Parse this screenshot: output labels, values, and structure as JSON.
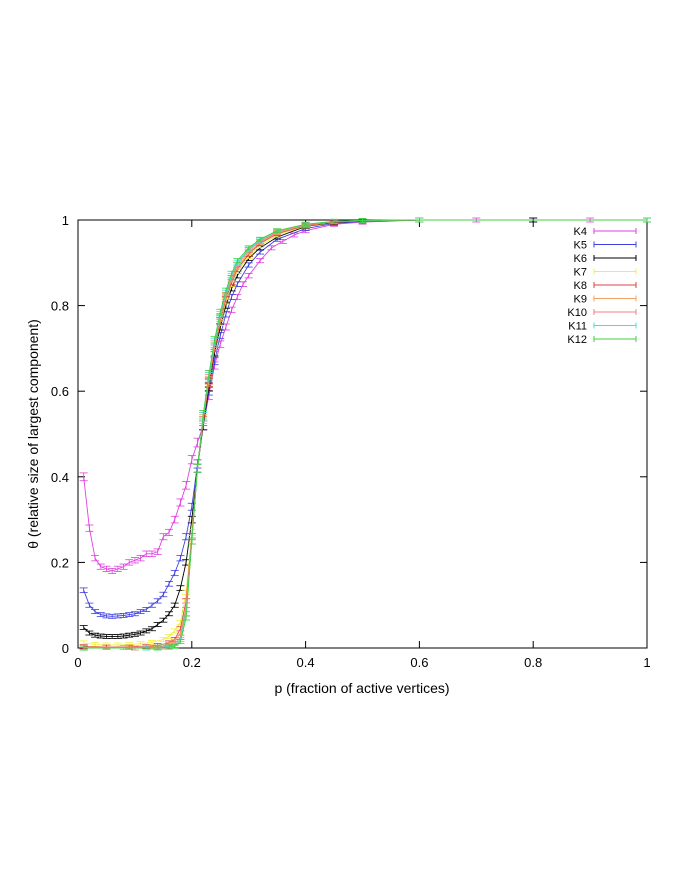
{
  "chart_data": {
    "type": "line",
    "title": "",
    "xlabel": "p (fraction of active vertices)",
    "ylabel": "θ (relative size of largest component)",
    "xlim": [
      0,
      1
    ],
    "ylim": [
      0,
      1
    ],
    "xticks": [
      "0",
      "0.2",
      "0.4",
      "0.6",
      "0.8",
      "1"
    ],
    "yticks": [
      "0",
      "0.2",
      "0.4",
      "0.6",
      "0.8",
      "1"
    ],
    "grid": false,
    "legend_position": "top-right",
    "error_bars": true,
    "series": [
      {
        "name": "K4",
        "color": "#e040e0",
        "points": [
          [
            0.01,
            0.4
          ],
          [
            0.02,
            0.28
          ],
          [
            0.03,
            0.21
          ],
          [
            0.04,
            0.19
          ],
          [
            0.05,
            0.185
          ],
          [
            0.06,
            0.18
          ],
          [
            0.07,
            0.185
          ],
          [
            0.08,
            0.19
          ],
          [
            0.09,
            0.2
          ],
          [
            0.1,
            0.205
          ],
          [
            0.11,
            0.21
          ],
          [
            0.12,
            0.22
          ],
          [
            0.13,
            0.22
          ],
          [
            0.14,
            0.225
          ],
          [
            0.15,
            0.26
          ],
          [
            0.16,
            0.27
          ],
          [
            0.17,
            0.3
          ],
          [
            0.18,
            0.34
          ],
          [
            0.19,
            0.38
          ],
          [
            0.2,
            0.44
          ],
          [
            0.21,
            0.48
          ],
          [
            0.22,
            0.52
          ],
          [
            0.23,
            0.59
          ],
          [
            0.24,
            0.66
          ],
          [
            0.25,
            0.71
          ],
          [
            0.26,
            0.75
          ],
          [
            0.27,
            0.79
          ],
          [
            0.28,
            0.82
          ],
          [
            0.29,
            0.85
          ],
          [
            0.3,
            0.87
          ],
          [
            0.32,
            0.905
          ],
          [
            0.34,
            0.935
          ],
          [
            0.36,
            0.95
          ],
          [
            0.38,
            0.965
          ],
          [
            0.4,
            0.975
          ],
          [
            0.45,
            0.99
          ],
          [
            0.5,
            0.995
          ],
          [
            0.6,
            1.0
          ],
          [
            0.7,
            1.0
          ],
          [
            0.8,
            1.0
          ],
          [
            0.9,
            1.0
          ],
          [
            1.0,
            1.0
          ]
        ]
      },
      {
        "name": "K5",
        "color": "#4040e0",
        "points": [
          [
            0.01,
            0.135
          ],
          [
            0.02,
            0.1
          ],
          [
            0.03,
            0.085
          ],
          [
            0.04,
            0.078
          ],
          [
            0.05,
            0.075
          ],
          [
            0.06,
            0.074
          ],
          [
            0.07,
            0.075
          ],
          [
            0.08,
            0.076
          ],
          [
            0.09,
            0.078
          ],
          [
            0.1,
            0.08
          ],
          [
            0.11,
            0.085
          ],
          [
            0.12,
            0.09
          ],
          [
            0.13,
            0.1
          ],
          [
            0.14,
            0.11
          ],
          [
            0.15,
            0.125
          ],
          [
            0.16,
            0.15
          ],
          [
            0.17,
            0.175
          ],
          [
            0.18,
            0.21
          ],
          [
            0.19,
            0.26
          ],
          [
            0.2,
            0.33
          ],
          [
            0.21,
            0.43
          ],
          [
            0.22,
            0.52
          ],
          [
            0.23,
            0.6
          ],
          [
            0.24,
            0.67
          ],
          [
            0.25,
            0.73
          ],
          [
            0.26,
            0.78
          ],
          [
            0.27,
            0.82
          ],
          [
            0.28,
            0.85
          ],
          [
            0.3,
            0.895
          ],
          [
            0.32,
            0.925
          ],
          [
            0.35,
            0.955
          ],
          [
            0.4,
            0.98
          ],
          [
            0.45,
            0.992
          ],
          [
            0.5,
            0.997
          ],
          [
            0.6,
            1.0
          ],
          [
            0.8,
            1.0
          ],
          [
            1.0,
            1.0
          ]
        ]
      },
      {
        "name": "K6",
        "color": "#000000",
        "points": [
          [
            0.01,
            0.048
          ],
          [
            0.02,
            0.035
          ],
          [
            0.03,
            0.03
          ],
          [
            0.04,
            0.028
          ],
          [
            0.05,
            0.027
          ],
          [
            0.06,
            0.027
          ],
          [
            0.07,
            0.027
          ],
          [
            0.08,
            0.028
          ],
          [
            0.09,
            0.03
          ],
          [
            0.1,
            0.032
          ],
          [
            0.11,
            0.035
          ],
          [
            0.12,
            0.04
          ],
          [
            0.13,
            0.045
          ],
          [
            0.14,
            0.055
          ],
          [
            0.15,
            0.065
          ],
          [
            0.16,
            0.08
          ],
          [
            0.17,
            0.1
          ],
          [
            0.18,
            0.14
          ],
          [
            0.19,
            0.2
          ],
          [
            0.2,
            0.3
          ],
          [
            0.21,
            0.42
          ],
          [
            0.22,
            0.52
          ],
          [
            0.23,
            0.61
          ],
          [
            0.24,
            0.69
          ],
          [
            0.25,
            0.75
          ],
          [
            0.26,
            0.8
          ],
          [
            0.27,
            0.84
          ],
          [
            0.28,
            0.87
          ],
          [
            0.3,
            0.91
          ],
          [
            0.32,
            0.935
          ],
          [
            0.35,
            0.96
          ],
          [
            0.4,
            0.985
          ],
          [
            0.45,
            0.994
          ],
          [
            0.5,
            0.998
          ],
          [
            0.6,
            1.0
          ],
          [
            0.8,
            1.0
          ],
          [
            1.0,
            1.0
          ]
        ]
      },
      {
        "name": "K7",
        "color": "#f0f040",
        "points": [
          [
            0.01,
            0.012
          ],
          [
            0.03,
            0.008
          ],
          [
            0.05,
            0.007
          ],
          [
            0.07,
            0.007
          ],
          [
            0.09,
            0.008
          ],
          [
            0.11,
            0.01
          ],
          [
            0.13,
            0.013
          ],
          [
            0.15,
            0.02
          ],
          [
            0.16,
            0.027
          ],
          [
            0.17,
            0.04
          ],
          [
            0.18,
            0.06
          ],
          [
            0.19,
            0.13
          ],
          [
            0.2,
            0.27
          ],
          [
            0.21,
            0.42
          ],
          [
            0.22,
            0.53
          ],
          [
            0.23,
            0.62
          ],
          [
            0.24,
            0.7
          ],
          [
            0.25,
            0.76
          ],
          [
            0.26,
            0.81
          ],
          [
            0.27,
            0.85
          ],
          [
            0.28,
            0.88
          ],
          [
            0.3,
            0.915
          ],
          [
            0.32,
            0.94
          ],
          [
            0.35,
            0.965
          ],
          [
            0.4,
            0.986
          ],
          [
            0.45,
            0.995
          ],
          [
            0.5,
            0.998
          ],
          [
            0.6,
            1.0
          ],
          [
            1.0,
            1.0
          ]
        ]
      },
      {
        "name": "K8",
        "color": "#e04040",
        "points": [
          [
            0.01,
            0.003
          ],
          [
            0.05,
            0.002
          ],
          [
            0.09,
            0.002
          ],
          [
            0.12,
            0.003
          ],
          [
            0.14,
            0.006
          ],
          [
            0.16,
            0.012
          ],
          [
            0.17,
            0.02
          ],
          [
            0.18,
            0.045
          ],
          [
            0.19,
            0.11
          ],
          [
            0.2,
            0.26
          ],
          [
            0.21,
            0.42
          ],
          [
            0.22,
            0.53
          ],
          [
            0.23,
            0.62
          ],
          [
            0.24,
            0.7
          ],
          [
            0.25,
            0.765
          ],
          [
            0.26,
            0.815
          ],
          [
            0.27,
            0.855
          ],
          [
            0.28,
            0.885
          ],
          [
            0.3,
            0.92
          ],
          [
            0.32,
            0.945
          ],
          [
            0.35,
            0.968
          ],
          [
            0.4,
            0.987
          ],
          [
            0.45,
            0.995
          ],
          [
            0.5,
            0.998
          ],
          [
            0.6,
            1.0
          ],
          [
            1.0,
            1.0
          ]
        ]
      },
      {
        "name": "K9",
        "color": "#f0a060",
        "points": [
          [
            0.01,
            0.001
          ],
          [
            0.08,
            0.001
          ],
          [
            0.13,
            0.002
          ],
          [
            0.15,
            0.004
          ],
          [
            0.16,
            0.008
          ],
          [
            0.17,
            0.015
          ],
          [
            0.18,
            0.035
          ],
          [
            0.19,
            0.1
          ],
          [
            0.2,
            0.25
          ],
          [
            0.21,
            0.42
          ],
          [
            0.22,
            0.535
          ],
          [
            0.23,
            0.625
          ],
          [
            0.24,
            0.705
          ],
          [
            0.25,
            0.77
          ],
          [
            0.26,
            0.82
          ],
          [
            0.27,
            0.86
          ],
          [
            0.28,
            0.89
          ],
          [
            0.3,
            0.925
          ],
          [
            0.32,
            0.948
          ],
          [
            0.35,
            0.97
          ],
          [
            0.4,
            0.988
          ],
          [
            0.45,
            0.996
          ],
          [
            0.5,
            0.999
          ],
          [
            0.6,
            1.0
          ],
          [
            1.0,
            1.0
          ]
        ]
      },
      {
        "name": "K10",
        "color": "#f08080",
        "points": [
          [
            0.01,
            0.0
          ],
          [
            0.1,
            0.0
          ],
          [
            0.14,
            0.002
          ],
          [
            0.16,
            0.005
          ],
          [
            0.17,
            0.01
          ],
          [
            0.18,
            0.025
          ],
          [
            0.19,
            0.09
          ],
          [
            0.2,
            0.25
          ],
          [
            0.21,
            0.42
          ],
          [
            0.22,
            0.54
          ],
          [
            0.23,
            0.63
          ],
          [
            0.24,
            0.71
          ],
          [
            0.25,
            0.775
          ],
          [
            0.26,
            0.825
          ],
          [
            0.27,
            0.865
          ],
          [
            0.28,
            0.895
          ],
          [
            0.3,
            0.93
          ],
          [
            0.32,
            0.95
          ],
          [
            0.35,
            0.972
          ],
          [
            0.4,
            0.989
          ],
          [
            0.45,
            0.996
          ],
          [
            0.5,
            0.999
          ],
          [
            0.6,
            1.0
          ],
          [
            1.0,
            1.0
          ]
        ]
      },
      {
        "name": "K11",
        "color": "#40e0e0",
        "points": [
          [
            0.01,
            0.0
          ],
          [
            0.12,
            0.0
          ],
          [
            0.15,
            0.002
          ],
          [
            0.17,
            0.006
          ],
          [
            0.18,
            0.02
          ],
          [
            0.19,
            0.08
          ],
          [
            0.2,
            0.25
          ],
          [
            0.21,
            0.42
          ],
          [
            0.22,
            0.54
          ],
          [
            0.23,
            0.635
          ],
          [
            0.24,
            0.715
          ],
          [
            0.25,
            0.78
          ],
          [
            0.26,
            0.83
          ],
          [
            0.27,
            0.87
          ],
          [
            0.28,
            0.9
          ],
          [
            0.3,
            0.932
          ],
          [
            0.32,
            0.953
          ],
          [
            0.35,
            0.974
          ],
          [
            0.4,
            0.99
          ],
          [
            0.45,
            0.997
          ],
          [
            0.5,
            0.999
          ],
          [
            0.6,
            1.0
          ],
          [
            1.0,
            1.0
          ]
        ]
      },
      {
        "name": "K12",
        "color": "#40d040",
        "points": [
          [
            0.01,
            0.0
          ],
          [
            0.14,
            0.0
          ],
          [
            0.16,
            0.002
          ],
          [
            0.17,
            0.004
          ],
          [
            0.18,
            0.015
          ],
          [
            0.19,
            0.07
          ],
          [
            0.2,
            0.25
          ],
          [
            0.21,
            0.42
          ],
          [
            0.22,
            0.545
          ],
          [
            0.23,
            0.64
          ],
          [
            0.24,
            0.72
          ],
          [
            0.25,
            0.785
          ],
          [
            0.26,
            0.835
          ],
          [
            0.27,
            0.875
          ],
          [
            0.28,
            0.905
          ],
          [
            0.3,
            0.935
          ],
          [
            0.32,
            0.955
          ],
          [
            0.35,
            0.975
          ],
          [
            0.4,
            0.99
          ],
          [
            0.45,
            0.997
          ],
          [
            0.5,
            0.999
          ],
          [
            0.6,
            1.0
          ],
          [
            1.0,
            1.0
          ]
        ]
      }
    ]
  }
}
